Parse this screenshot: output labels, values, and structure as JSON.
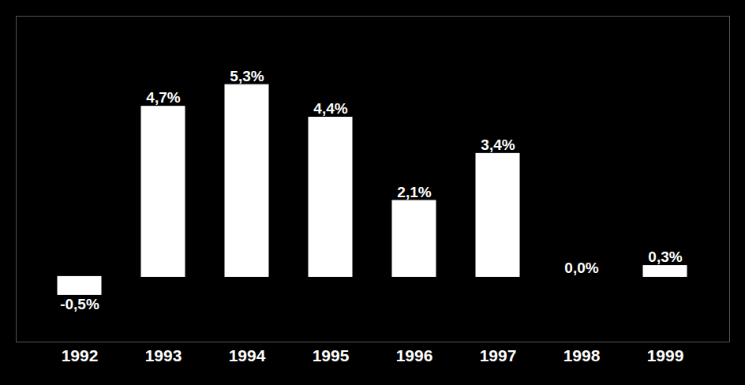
{
  "chart_data": {
    "type": "bar",
    "categories": [
      "1992",
      "1993",
      "1994",
      "1995",
      "1996",
      "1997",
      "1998",
      "1999"
    ],
    "values": [
      -0.5,
      4.7,
      5.3,
      4.4,
      2.1,
      3.4,
      0.0,
      0.3
    ],
    "value_labels": [
      "-0,5%",
      "4,7%",
      "5,3%",
      "4,4%",
      "2,1%",
      "3,4%",
      "0,0%",
      "0,3%"
    ],
    "color": "#ffffff",
    "ylim": [
      -1.8,
      7.2
    ],
    "data_labels": true,
    "tick_labels": "x"
  }
}
